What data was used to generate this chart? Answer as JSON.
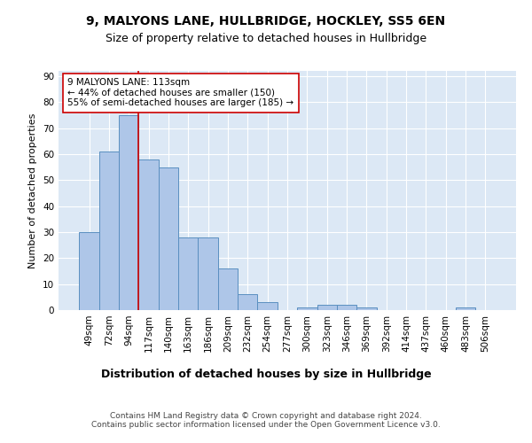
{
  "title1": "9, MALYONS LANE, HULLBRIDGE, HOCKLEY, SS5 6EN",
  "title2": "Size of property relative to detached houses in Hullbridge",
  "xlabel": "Distribution of detached houses by size in Hullbridge",
  "ylabel": "Number of detached properties",
  "categories": [
    "49sqm",
    "72sqm",
    "94sqm",
    "117sqm",
    "140sqm",
    "163sqm",
    "186sqm",
    "209sqm",
    "232sqm",
    "254sqm",
    "277sqm",
    "300sqm",
    "323sqm",
    "346sqm",
    "369sqm",
    "392sqm",
    "414sqm",
    "437sqm",
    "460sqm",
    "483sqm",
    "506sqm"
  ],
  "values": [
    30,
    61,
    75,
    58,
    55,
    28,
    28,
    16,
    6,
    3,
    0,
    1,
    2,
    2,
    1,
    0,
    0,
    0,
    0,
    1,
    0
  ],
  "bar_color": "#aec6e8",
  "bar_edge_color": "#5a8fc0",
  "vline_x_index": 2.5,
  "vline_color": "#cc0000",
  "annotation_text": "9 MALYONS LANE: 113sqm\n← 44% of detached houses are smaller (150)\n55% of semi-detached houses are larger (185) →",
  "annotation_box_color": "#ffffff",
  "annotation_box_edge_color": "#cc0000",
  "ylim": [
    0,
    92
  ],
  "yticks": [
    0,
    10,
    20,
    30,
    40,
    50,
    60,
    70,
    80,
    90
  ],
  "background_color": "#dce8f5",
  "footer_text": "Contains HM Land Registry data © Crown copyright and database right 2024.\nContains public sector information licensed under the Open Government Licence v3.0.",
  "title1_fontsize": 10,
  "title2_fontsize": 9,
  "xlabel_fontsize": 9,
  "ylabel_fontsize": 8,
  "tick_fontsize": 7.5,
  "annotation_fontsize": 7.5,
  "footer_fontsize": 6.5
}
